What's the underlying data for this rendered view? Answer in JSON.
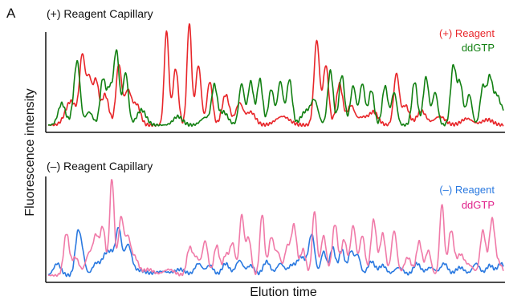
{
  "figure": {
    "panel_letter": "A",
    "xlabel": "Elution time",
    "ylabel": "Fluorescence intensity"
  },
  "chart_data": [
    {
      "type": "line",
      "title": "(+) Reagent Capillary",
      "xlabel": "Elution time",
      "ylabel": "Fluorescence intensity",
      "xlim": [
        0,
        1
      ],
      "ylim": [
        0,
        1
      ],
      "legend_position": "top-right",
      "series": [
        {
          "name": "(+) Reagent",
          "color": "#e8262a",
          "peaks": [
            [
              0.05,
              0.22,
              0.012
            ],
            [
              0.075,
              0.62,
              0.006
            ],
            [
              0.09,
              0.42,
              0.006
            ],
            [
              0.105,
              0.4,
              0.006
            ],
            [
              0.125,
              0.28,
              0.008
            ],
            [
              0.155,
              0.55,
              0.006
            ],
            [
              0.175,
              0.32,
              0.008
            ],
            [
              0.195,
              0.18,
              0.008
            ],
            [
              0.26,
              0.87,
              0.005
            ],
            [
              0.28,
              0.52,
              0.006
            ],
            [
              0.31,
              0.94,
              0.005
            ],
            [
              0.33,
              0.55,
              0.006
            ],
            [
              0.355,
              0.4,
              0.006
            ],
            [
              0.39,
              0.28,
              0.008
            ],
            [
              0.42,
              0.2,
              0.008
            ],
            [
              0.445,
              0.12,
              0.01
            ],
            [
              0.515,
              0.08,
              0.015
            ],
            [
              0.59,
              0.78,
              0.006
            ],
            [
              0.61,
              0.55,
              0.006
            ],
            [
              0.64,
              0.38,
              0.007
            ],
            [
              0.665,
              0.18,
              0.008
            ],
            [
              0.69,
              0.07,
              0.01
            ],
            [
              0.715,
              0.12,
              0.01
            ],
            [
              0.765,
              0.47,
              0.006
            ],
            [
              0.785,
              0.18,
              0.008
            ],
            [
              0.82,
              0.13,
              0.01
            ],
            [
              0.86,
              0.08,
              0.012
            ],
            [
              0.92,
              0.06,
              0.012
            ],
            [
              0.965,
              0.05,
              0.012
            ]
          ]
        },
        {
          "name": "ddGTP",
          "color": "#128012",
          "peaks": [
            [
              0.03,
              0.2,
              0.008
            ],
            [
              0.06,
              0.25,
              0.007
            ],
            [
              0.065,
              0.38,
              0.006
            ],
            [
              0.09,
              0.12,
              0.008
            ],
            [
              0.12,
              0.42,
              0.006
            ],
            [
              0.135,
              0.32,
              0.006
            ],
            [
              0.15,
              0.68,
              0.006
            ],
            [
              0.17,
              0.48,
              0.006
            ],
            [
              0.205,
              0.14,
              0.01
            ],
            [
              0.285,
              0.08,
              0.01
            ],
            [
              0.345,
              0.07,
              0.01
            ],
            [
              0.365,
              0.35,
              0.006
            ],
            [
              0.385,
              0.12,
              0.01
            ],
            [
              0.425,
              0.38,
              0.006
            ],
            [
              0.445,
              0.4,
              0.006
            ],
            [
              0.465,
              0.42,
              0.006
            ],
            [
              0.49,
              0.33,
              0.006
            ],
            [
              0.51,
              0.4,
              0.006
            ],
            [
              0.53,
              0.42,
              0.006
            ],
            [
              0.565,
              0.12,
              0.01
            ],
            [
              0.585,
              0.22,
              0.008
            ],
            [
              0.62,
              0.5,
              0.006
            ],
            [
              0.645,
              0.46,
              0.006
            ],
            [
              0.67,
              0.36,
              0.006
            ],
            [
              0.69,
              0.38,
              0.006
            ],
            [
              0.71,
              0.32,
              0.006
            ],
            [
              0.74,
              0.36,
              0.006
            ],
            [
              0.76,
              0.3,
              0.006
            ],
            [
              0.805,
              0.4,
              0.006
            ],
            [
              0.83,
              0.44,
              0.006
            ],
            [
              0.85,
              0.3,
              0.006
            ],
            [
              0.89,
              0.54,
              0.006
            ],
            [
              0.905,
              0.38,
              0.006
            ],
            [
              0.925,
              0.28,
              0.006
            ],
            [
              0.955,
              0.35,
              0.006
            ],
            [
              0.97,
              0.42,
              0.006
            ],
            [
              0.985,
              0.25,
              0.007
            ],
            [
              1.0,
              0.12,
              0.008
            ]
          ]
        }
      ]
    },
    {
      "type": "line",
      "title": "(–) Reagent Capillary",
      "xlabel": "Elution time",
      "ylabel": "Fluorescence intensity",
      "xlim": [
        0,
        1
      ],
      "ylim": [
        0,
        1
      ],
      "legend_position": "top-right",
      "series": [
        {
          "name": "(–) Reagent",
          "color": "#2a79e0",
          "peaks": [
            [
              0.02,
              0.12,
              0.008
            ],
            [
              0.065,
              0.4,
              0.006
            ],
            [
              0.075,
              0.2,
              0.006
            ],
            [
              0.105,
              0.12,
              0.008
            ],
            [
              0.125,
              0.18,
              0.008
            ],
            [
              0.14,
              0.2,
              0.008
            ],
            [
              0.155,
              0.44,
              0.006
            ],
            [
              0.175,
              0.3,
              0.008
            ],
            [
              0.2,
              0.05,
              0.015
            ],
            [
              0.25,
              0.04,
              0.015
            ],
            [
              0.29,
              0.06,
              0.012
            ],
            [
              0.33,
              0.12,
              0.008
            ],
            [
              0.355,
              0.1,
              0.008
            ],
            [
              0.39,
              0.12,
              0.008
            ],
            [
              0.42,
              0.15,
              0.008
            ],
            [
              0.445,
              0.1,
              0.008
            ],
            [
              0.48,
              0.14,
              0.008
            ],
            [
              0.51,
              0.12,
              0.008
            ],
            [
              0.535,
              0.1,
              0.008
            ],
            [
              0.555,
              0.18,
              0.008
            ],
            [
              0.575,
              0.16,
              0.008
            ],
            [
              0.58,
              0.28,
              0.006
            ],
            [
              0.605,
              0.24,
              0.006
            ],
            [
              0.625,
              0.28,
              0.006
            ],
            [
              0.645,
              0.26,
              0.006
            ],
            [
              0.665,
              0.24,
              0.006
            ],
            [
              0.68,
              0.2,
              0.006
            ],
            [
              0.71,
              0.14,
              0.008
            ],
            [
              0.735,
              0.1,
              0.008
            ],
            [
              0.77,
              0.08,
              0.01
            ],
            [
              0.81,
              0.12,
              0.008
            ],
            [
              0.84,
              0.08,
              0.01
            ],
            [
              0.87,
              0.12,
              0.008
            ],
            [
              0.905,
              0.08,
              0.01
            ],
            [
              0.94,
              0.12,
              0.008
            ],
            [
              0.97,
              0.1,
              0.008
            ],
            [
              0.995,
              0.12,
              0.008
            ]
          ]
        },
        {
          "name": "ddGTP",
          "color": "#f07aa8",
          "peaks": [
            [
              0.04,
              0.42,
              0.006
            ],
            [
              0.06,
              0.18,
              0.008
            ],
            [
              0.09,
              0.22,
              0.008
            ],
            [
              0.105,
              0.36,
              0.006
            ],
            [
              0.12,
              0.48,
              0.006
            ],
            [
              0.14,
              0.98,
              0.005
            ],
            [
              0.16,
              0.58,
              0.006
            ],
            [
              0.175,
              0.35,
              0.006
            ],
            [
              0.19,
              0.18,
              0.008
            ],
            [
              0.22,
              0.06,
              0.012
            ],
            [
              0.265,
              0.06,
              0.012
            ],
            [
              0.31,
              0.25,
              0.006
            ],
            [
              0.325,
              0.18,
              0.008
            ],
            [
              0.345,
              0.34,
              0.006
            ],
            [
              0.37,
              0.3,
              0.006
            ],
            [
              0.39,
              0.2,
              0.006
            ],
            [
              0.405,
              0.32,
              0.006
            ],
            [
              0.425,
              0.6,
              0.005
            ],
            [
              0.44,
              0.38,
              0.006
            ],
            [
              0.47,
              0.62,
              0.005
            ],
            [
              0.49,
              0.38,
              0.006
            ],
            [
              0.505,
              0.22,
              0.006
            ],
            [
              0.525,
              0.28,
              0.006
            ],
            [
              0.54,
              0.5,
              0.006
            ],
            [
              0.56,
              0.26,
              0.006
            ],
            [
              0.585,
              0.65,
              0.005
            ],
            [
              0.605,
              0.4,
              0.006
            ],
            [
              0.63,
              0.52,
              0.006
            ],
            [
              0.65,
              0.36,
              0.006
            ],
            [
              0.67,
              0.5,
              0.006
            ],
            [
              0.69,
              0.4,
              0.006
            ],
            [
              0.715,
              0.56,
              0.006
            ],
            [
              0.735,
              0.42,
              0.006
            ],
            [
              0.76,
              0.45,
              0.006
            ],
            [
              0.79,
              0.18,
              0.008
            ],
            [
              0.815,
              0.34,
              0.006
            ],
            [
              0.835,
              0.25,
              0.006
            ],
            [
              0.865,
              0.72,
              0.005
            ],
            [
              0.885,
              0.45,
              0.006
            ],
            [
              0.905,
              0.2,
              0.008
            ],
            [
              0.925,
              0.1,
              0.01
            ],
            [
              0.955,
              0.45,
              0.006
            ],
            [
              0.975,
              0.55,
              0.006
            ],
            [
              0.99,
              0.12,
              0.008
            ]
          ]
        }
      ]
    }
  ]
}
